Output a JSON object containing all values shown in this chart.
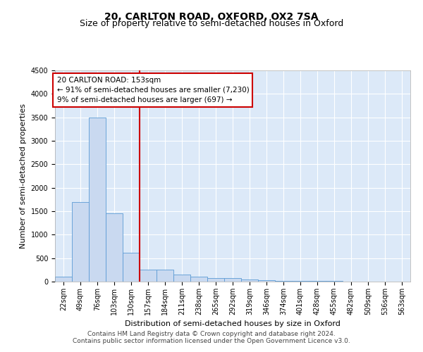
{
  "title": "20, CARLTON ROAD, OXFORD, OX2 7SA",
  "subtitle": "Size of property relative to semi-detached houses in Oxford",
  "xlabel": "Distribution of semi-detached houses by size in Oxford",
  "ylabel": "Number of semi-detached properties",
  "categories": [
    "22sqm",
    "49sqm",
    "76sqm",
    "103sqm",
    "130sqm",
    "157sqm",
    "184sqm",
    "211sqm",
    "238sqm",
    "265sqm",
    "292sqm",
    "319sqm",
    "346sqm",
    "374sqm",
    "401sqm",
    "428sqm",
    "455sqm",
    "482sqm",
    "509sqm",
    "536sqm",
    "563sqm"
  ],
  "values": [
    100,
    1700,
    3500,
    1450,
    620,
    250,
    250,
    150,
    100,
    75,
    75,
    50,
    30,
    20,
    15,
    10,
    8,
    5,
    5,
    3,
    3
  ],
  "bar_color": "#c9d9f0",
  "bar_edge_color": "#5b9bd5",
  "vline_index": 5,
  "annotation_line1": "20 CARLTON ROAD: 153sqm",
  "annotation_line2": "← 91% of semi-detached houses are smaller (7,230)",
  "annotation_line3": "9% of semi-detached houses are larger (697) →",
  "annotation_box_color": "#ffffff",
  "annotation_box_edge": "#cc0000",
  "vline_color": "#cc0000",
  "ylim": [
    0,
    4500
  ],
  "yticks": [
    0,
    500,
    1000,
    1500,
    2000,
    2500,
    3000,
    3500,
    4000,
    4500
  ],
  "footer_line1": "Contains HM Land Registry data © Crown copyright and database right 2024.",
  "footer_line2": "Contains public sector information licensed under the Open Government Licence v3.0.",
  "bg_color": "#dce9f8",
  "fig_bg_color": "#ffffff",
  "grid_color": "#ffffff",
  "title_fontsize": 10,
  "subtitle_fontsize": 9,
  "axis_label_fontsize": 8,
  "tick_fontsize": 7,
  "footer_fontsize": 6.5
}
